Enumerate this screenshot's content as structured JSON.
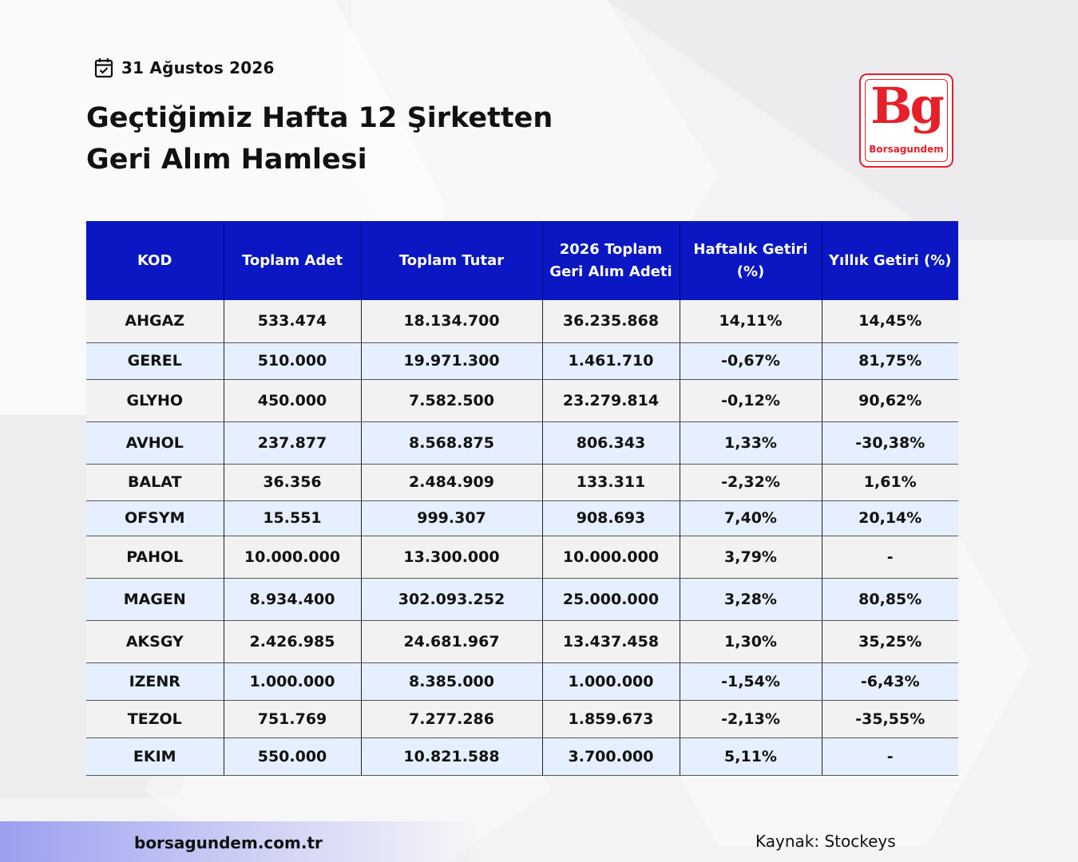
{
  "header": {
    "date": "31 Ağustos 2026",
    "date_icon": "calendar-check-icon",
    "title_line1": "Geçtiğimiz Hafta 12 Şirketten",
    "title_line2": "Geri Alım Hamlesi"
  },
  "logo": {
    "mark": "Bg",
    "name": "Borsagundem",
    "color": "#e5202a"
  },
  "table": {
    "header_color": "#0a17c2",
    "columns": [
      "KOD",
      "Toplam Adet",
      "Toplam Tutar",
      "2026 Toplam Geri Alım Adeti",
      "Haftalık Getiri (%)",
      "Yıllık Getiri (%)"
    ],
    "rows": [
      [
        "AHGAZ",
        "533.474",
        "18.134.700",
        "36.235.868",
        "14,11%",
        "14,45%"
      ],
      [
        "GEREL",
        "510.000",
        "19.971.300",
        "1.461.710",
        "-0,67%",
        "81,75%"
      ],
      [
        "GLYHO",
        "450.000",
        "7.582.500",
        "23.279.814",
        "-0,12%",
        "90,62%"
      ],
      [
        "AVHOL",
        "237.877",
        "8.568.875",
        "806.343",
        "1,33%",
        "-30,38%"
      ],
      [
        "BALAT",
        "36.356",
        "2.484.909",
        "133.311",
        "-2,32%",
        "1,61%"
      ],
      [
        "OFSYM",
        "15.551",
        "999.307",
        "908.693",
        "7,40%",
        "20,14%"
      ],
      [
        "PAHOL",
        "10.000.000",
        "13.300.000",
        "10.000.000",
        "3,79%",
        "-"
      ],
      [
        "MAGEN",
        "8.934.400",
        "302.093.252",
        "25.000.000",
        "3,28%",
        "80,85%"
      ],
      [
        "AKSGY",
        "2.426.985",
        "24.681.967",
        "13.437.458",
        "1,30%",
        "35,25%"
      ],
      [
        "IZENR",
        "1.000.000",
        "8.385.000",
        "1.000.000",
        "-1,54%",
        "-6,43%"
      ],
      [
        "TEZOL",
        "751.769",
        "7.277.286",
        "1.859.673",
        "-2,13%",
        "-35,55%"
      ],
      [
        "EKIM",
        "550.000",
        "10.821.588",
        "3.700.000",
        "5,11%",
        "-"
      ]
    ]
  },
  "footer": {
    "site": "borsagundem.com.tr",
    "source": "Kaynak: Stockeys"
  }
}
